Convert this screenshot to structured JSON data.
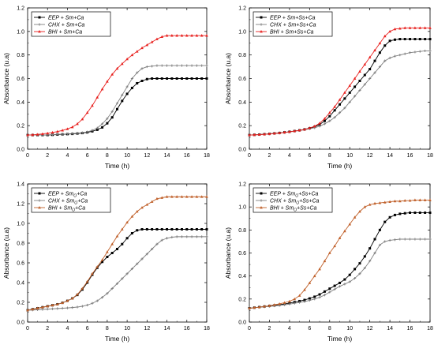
{
  "colors": {
    "EEP": "#000000",
    "CHX": "#808080",
    "BHI_a": "#e8201e",
    "BHI_c": "#c0602a"
  },
  "chart_data": [
    {
      "type": "line",
      "xlabel": "Time (h)",
      "ylabel": "Absorbance (u.a)",
      "xlim": [
        0,
        18
      ],
      "ylim": [
        0,
        1.2
      ],
      "xticks": [
        "0",
        "2",
        "4",
        "6",
        "8",
        "10",
        "12",
        "14",
        "16",
        "18"
      ],
      "yticks": [
        "0.0",
        "0.2",
        "0.4",
        "0.6",
        "0.8",
        "1.0",
        "1.2"
      ],
      "legend_position": "top-left",
      "x": [
        0,
        0.5,
        1,
        1.5,
        2,
        2.5,
        3,
        3.5,
        4,
        4.5,
        5,
        5.5,
        6,
        6.5,
        7,
        7.5,
        8,
        8.5,
        9,
        9.5,
        10,
        10.5,
        11,
        11.5,
        12,
        12.5,
        13,
        13.5,
        14,
        14.5,
        15,
        15.5,
        16,
        16.5,
        17,
        17.5,
        18
      ],
      "series": [
        {
          "name": "EEP + Sm+Ca",
          "color": "#000000",
          "marker": "square",
          "values": [
            0.12,
            0.12,
            0.12,
            0.12,
            0.12,
            0.122,
            0.124,
            0.126,
            0.128,
            0.13,
            0.133,
            0.137,
            0.143,
            0.152,
            0.165,
            0.185,
            0.22,
            0.27,
            0.34,
            0.41,
            0.47,
            0.52,
            0.56,
            0.58,
            0.595,
            0.6,
            0.6,
            0.6,
            0.6,
            0.6,
            0.6,
            0.6,
            0.6,
            0.6,
            0.6,
            0.6,
            0.6
          ]
        },
        {
          "name": "CHX + Sm+Ca",
          "color": "#808080",
          "marker": "plus",
          "values": [
            0.12,
            0.12,
            0.12,
            0.12,
            0.122,
            0.124,
            0.126,
            0.128,
            0.13,
            0.133,
            0.136,
            0.14,
            0.147,
            0.16,
            0.18,
            0.215,
            0.26,
            0.32,
            0.39,
            0.46,
            0.53,
            0.6,
            0.65,
            0.685,
            0.7,
            0.705,
            0.71,
            0.71,
            0.71,
            0.71,
            0.71,
            0.71,
            0.71,
            0.71,
            0.71,
            0.71,
            0.71
          ]
        },
        {
          "name": "BHI + Sm+Ca",
          "color": "#e8201e",
          "marker": "triangle",
          "values": [
            0.12,
            0.122,
            0.125,
            0.13,
            0.135,
            0.142,
            0.15,
            0.16,
            0.172,
            0.188,
            0.215,
            0.255,
            0.31,
            0.37,
            0.44,
            0.51,
            0.575,
            0.635,
            0.685,
            0.725,
            0.765,
            0.8,
            0.83,
            0.86,
            0.885,
            0.91,
            0.935,
            0.955,
            0.965,
            0.965,
            0.965,
            0.965,
            0.965,
            0.965,
            0.965,
            0.965,
            0.965
          ]
        }
      ]
    },
    {
      "type": "line",
      "xlabel": "Time (h)",
      "ylabel": "Absorbance (u.a)",
      "xlim": [
        0,
        18
      ],
      "ylim": [
        0,
        1.2
      ],
      "xticks": [
        "0",
        "2",
        "4",
        "6",
        "8",
        "10",
        "12",
        "14",
        "16",
        "18"
      ],
      "yticks": [
        "0.0",
        "0.2",
        "0.4",
        "0.6",
        "0.8",
        "1.0",
        "1.2"
      ],
      "legend_position": "top-left",
      "x": [
        0,
        0.5,
        1,
        1.5,
        2,
        2.5,
        3,
        3.5,
        4,
        4.5,
        5,
        5.5,
        6,
        6.5,
        7,
        7.5,
        8,
        8.5,
        9,
        9.5,
        10,
        10.5,
        11,
        11.5,
        12,
        12.5,
        13,
        13.5,
        14,
        14.5,
        15,
        15.5,
        16,
        16.5,
        17,
        17.5,
        18
      ],
      "series": [
        {
          "name": "EEP + Sm+Ss+Ca",
          "color": "#000000",
          "marker": "square",
          "values": [
            0.12,
            0.122,
            0.124,
            0.127,
            0.13,
            0.134,
            0.138,
            0.143,
            0.148,
            0.154,
            0.16,
            0.168,
            0.178,
            0.19,
            0.21,
            0.24,
            0.28,
            0.33,
            0.38,
            0.43,
            0.48,
            0.53,
            0.58,
            0.63,
            0.68,
            0.75,
            0.82,
            0.88,
            0.92,
            0.93,
            0.935,
            0.935,
            0.935,
            0.935,
            0.935,
            0.935,
            0.935
          ]
        },
        {
          "name": "CHX + Sm+Ss+Ca",
          "color": "#808080",
          "marker": "plus",
          "values": [
            0.12,
            0.122,
            0.124,
            0.126,
            0.129,
            0.132,
            0.136,
            0.141,
            0.146,
            0.152,
            0.158,
            0.165,
            0.173,
            0.182,
            0.195,
            0.215,
            0.24,
            0.27,
            0.31,
            0.35,
            0.4,
            0.45,
            0.5,
            0.55,
            0.6,
            0.65,
            0.7,
            0.75,
            0.775,
            0.79,
            0.8,
            0.81,
            0.82,
            0.825,
            0.83,
            0.835,
            0.835
          ]
        },
        {
          "name": "BHI + Sm+Ss+Ca",
          "color": "#e8201e",
          "marker": "triangle",
          "values": [
            0.12,
            0.122,
            0.124,
            0.127,
            0.13,
            0.134,
            0.138,
            0.143,
            0.148,
            0.154,
            0.16,
            0.168,
            0.18,
            0.195,
            0.22,
            0.26,
            0.31,
            0.36,
            0.42,
            0.48,
            0.54,
            0.6,
            0.66,
            0.72,
            0.78,
            0.84,
            0.9,
            0.96,
            1.0,
            1.02,
            1.025,
            1.03,
            1.03,
            1.03,
            1.03,
            1.03,
            1.03
          ]
        }
      ]
    },
    {
      "type": "line",
      "xlabel": "Time (h)",
      "ylabel": "Absorbance (u.a)",
      "xlim": [
        0,
        18
      ],
      "ylim": [
        0,
        1.4
      ],
      "xticks": [
        "0",
        "2",
        "4",
        "6",
        "8",
        "10",
        "12",
        "14",
        "16",
        "18"
      ],
      "yticks": [
        "0.0",
        "0.2",
        "0.4",
        "0.6",
        "0.8",
        "1.0",
        "1.2",
        "1.4"
      ],
      "legend_position": "top-left",
      "x": [
        0,
        0.5,
        1,
        1.5,
        2,
        2.5,
        3,
        3.5,
        4,
        4.5,
        5,
        5.5,
        6,
        6.5,
        7,
        7.5,
        8,
        8.5,
        9,
        9.5,
        10,
        10.5,
        11,
        11.5,
        12,
        12.5,
        13,
        13.5,
        14,
        14.5,
        15,
        15.5,
        16,
        16.5,
        17,
        17.5,
        18
      ],
      "series": [
        {
          "name": "EEP + SmO+Ca",
          "color": "#000000",
          "marker": "square",
          "values": [
            0.12,
            0.13,
            0.14,
            0.15,
            0.16,
            0.17,
            0.18,
            0.195,
            0.215,
            0.24,
            0.275,
            0.33,
            0.4,
            0.48,
            0.55,
            0.61,
            0.66,
            0.7,
            0.74,
            0.79,
            0.85,
            0.9,
            0.93,
            0.94,
            0.94,
            0.94,
            0.94,
            0.94,
            0.94,
            0.94,
            0.94,
            0.94,
            0.94,
            0.94,
            0.94,
            0.94,
            0.94
          ]
        },
        {
          "name": "CHX + SmO+Ca",
          "color": "#808080",
          "marker": "plus",
          "values": [
            0.12,
            0.122,
            0.125,
            0.128,
            0.131,
            0.134,
            0.137,
            0.14,
            0.143,
            0.147,
            0.152,
            0.16,
            0.172,
            0.19,
            0.215,
            0.25,
            0.29,
            0.34,
            0.39,
            0.44,
            0.49,
            0.54,
            0.59,
            0.64,
            0.69,
            0.74,
            0.79,
            0.83,
            0.85,
            0.86,
            0.865,
            0.865,
            0.865,
            0.865,
            0.865,
            0.865,
            0.865
          ]
        },
        {
          "name": "BHI + SmO+Ca",
          "color": "#c0602a",
          "marker": "triangle",
          "values": [
            0.12,
            0.13,
            0.14,
            0.15,
            0.16,
            0.17,
            0.18,
            0.195,
            0.215,
            0.24,
            0.28,
            0.34,
            0.41,
            0.49,
            0.56,
            0.63,
            0.71,
            0.79,
            0.87,
            0.94,
            1.01,
            1.07,
            1.12,
            1.16,
            1.19,
            1.22,
            1.25,
            1.26,
            1.27,
            1.27,
            1.27,
            1.27,
            1.27,
            1.27,
            1.27,
            1.27,
            1.27
          ]
        }
      ]
    },
    {
      "type": "line",
      "xlabel": "Time (h)",
      "ylabel": "Absorbance (u.a)",
      "xlim": [
        0,
        18
      ],
      "ylim": [
        0,
        1.2
      ],
      "xticks": [
        "0",
        "2",
        "4",
        "6",
        "8",
        "10",
        "12",
        "14",
        "16",
        "18"
      ],
      "yticks": [
        "0.0",
        "0.2",
        "0.4",
        "0.6",
        "0.8",
        "1.0",
        "1.2"
      ],
      "legend_position": "top-left",
      "x": [
        0,
        0.5,
        1,
        1.5,
        2,
        2.5,
        3,
        3.5,
        4,
        4.5,
        5,
        5.5,
        6,
        6.5,
        7,
        7.5,
        8,
        8.5,
        9,
        9.5,
        10,
        10.5,
        11,
        11.5,
        12,
        12.5,
        13,
        13.5,
        14,
        14.5,
        15,
        15.5,
        16,
        16.5,
        17,
        17.5,
        18
      ],
      "series": [
        {
          "name": "EEP + SmO+Ss+Ca",
          "color": "#000000",
          "marker": "square",
          "values": [
            0.12,
            0.125,
            0.13,
            0.135,
            0.14,
            0.145,
            0.15,
            0.157,
            0.165,
            0.173,
            0.182,
            0.192,
            0.205,
            0.22,
            0.24,
            0.265,
            0.29,
            0.315,
            0.34,
            0.37,
            0.41,
            0.46,
            0.51,
            0.57,
            0.64,
            0.72,
            0.8,
            0.87,
            0.91,
            0.93,
            0.94,
            0.945,
            0.95,
            0.95,
            0.95,
            0.95,
            0.95
          ]
        },
        {
          "name": "CHX + SmO+Ss+Ca",
          "color": "#808080",
          "marker": "plus",
          "values": [
            0.12,
            0.124,
            0.128,
            0.132,
            0.136,
            0.14,
            0.145,
            0.15,
            0.156,
            0.163,
            0.17,
            0.178,
            0.188,
            0.2,
            0.215,
            0.235,
            0.26,
            0.285,
            0.31,
            0.33,
            0.35,
            0.38,
            0.42,
            0.47,
            0.53,
            0.6,
            0.67,
            0.7,
            0.71,
            0.715,
            0.72,
            0.72,
            0.72,
            0.72,
            0.72,
            0.72,
            0.72
          ]
        },
        {
          "name": "BHI + SmO+Ss+Ca",
          "color": "#c0602a",
          "marker": "triangle",
          "values": [
            0.12,
            0.125,
            0.13,
            0.136,
            0.142,
            0.15,
            0.158,
            0.168,
            0.18,
            0.2,
            0.23,
            0.28,
            0.34,
            0.4,
            0.46,
            0.53,
            0.6,
            0.66,
            0.73,
            0.79,
            0.85,
            0.91,
            0.96,
            1.0,
            1.02,
            1.03,
            1.035,
            1.04,
            1.045,
            1.05,
            1.05,
            1.055,
            1.055,
            1.06,
            1.06,
            1.06,
            1.06
          ]
        }
      ]
    }
  ]
}
